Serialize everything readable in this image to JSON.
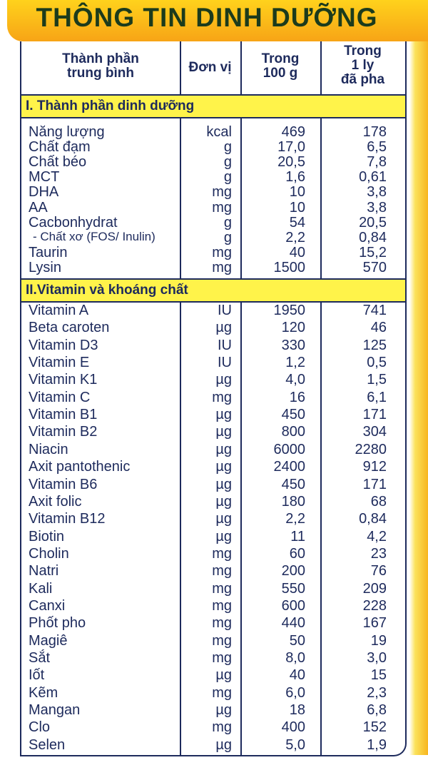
{
  "title": "THÔNG TIN DINH DƯỠNG",
  "header": [
    [
      "Thành phần",
      "trung bình"
    ],
    [
      "Đơn vị"
    ],
    [
      "Trong",
      "100 g"
    ],
    [
      "Trong",
      "1 ly",
      "đã pha"
    ]
  ],
  "sections": [
    {
      "title": "I. Thành phần dinh dưỡng",
      "rows": [
        [
          "Năng lượng",
          "kcal",
          "469",
          "178"
        ],
        [
          "Chất đạm",
          "g",
          "17,0",
          "6,5"
        ],
        [
          "Chất béo",
          "g",
          "20,5",
          "7,8"
        ],
        [
          "MCT",
          "g",
          "1,6",
          "0,61"
        ],
        [
          "DHA",
          "mg",
          "10",
          "3,8"
        ],
        [
          "AA",
          "mg",
          "10",
          "3,8"
        ],
        [
          "Cacbonhydrat",
          "g",
          "54",
          "20,5"
        ],
        [
          "- Chất xơ (FOS/ Inulin)",
          "g",
          "2,2",
          "0,84"
        ],
        [
          "Taurin",
          "mg",
          "40",
          "15,2"
        ],
        [
          "Lysin",
          "mg",
          "1500",
          "570"
        ]
      ]
    },
    {
      "title": "II.Vitamin và khoáng chất",
      "rows": [
        [
          "Vitamin A",
          "IU",
          "1950",
          "741"
        ],
        [
          "Beta caroten",
          "µg",
          "120",
          "46"
        ],
        [
          "Vitamin D3",
          "IU",
          "330",
          "125"
        ],
        [
          "Vitamin E",
          "IU",
          "1,2",
          "0,5"
        ],
        [
          "Vitamin K1",
          "µg",
          "4,0",
          "1,5"
        ],
        [
          "Vitamin C",
          "mg",
          "16",
          "6,1"
        ],
        [
          "Vitamin B1",
          "µg",
          "450",
          "171"
        ],
        [
          "Vitamin B2",
          "µg",
          "800",
          "304"
        ],
        [
          "Niacin",
          "µg",
          "6000",
          "2280"
        ],
        [
          "Axit pantothenic",
          "µg",
          "2400",
          "912"
        ],
        [
          "Vitamin B6",
          "µg",
          "450",
          "171"
        ],
        [
          "Axit folic",
          "µg",
          "180",
          "68"
        ],
        [
          "Vitamin B12",
          "µg",
          "2,2",
          "0,84"
        ],
        [
          "Biotin",
          "µg",
          "11",
          "4,2"
        ],
        [
          "Cholin",
          "mg",
          "60",
          "23"
        ],
        [
          "Natri",
          "mg",
          "200",
          "76"
        ],
        [
          "Kali",
          "mg",
          "550",
          "209"
        ],
        [
          "Canxi",
          "mg",
          "600",
          "228"
        ],
        [
          "Phốt pho",
          "mg",
          "440",
          "167"
        ],
        [
          "Magiê",
          "mg",
          "50",
          "19"
        ],
        [
          "Sắt",
          "mg",
          "8,0",
          "3,0"
        ],
        [
          "Iốt",
          "µg",
          "40",
          "15"
        ],
        [
          "Kẽm",
          "mg",
          "6,0",
          "2,3"
        ],
        [
          "Mangan",
          "µg",
          "18",
          "6,8"
        ],
        [
          "Clo",
          "mg",
          "400",
          "152"
        ],
        [
          "Selen",
          "µg",
          "5,0",
          "1,9"
        ]
      ]
    }
  ]
}
